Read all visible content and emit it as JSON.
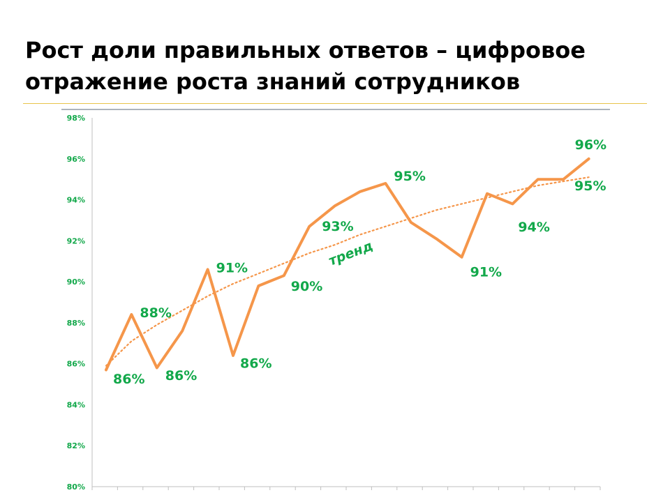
{
  "title": "Рост доли правильных ответов – цифровое отражение роста знаний сотрудников",
  "colors": {
    "series": "#f5964a",
    "labels": "#12a84a",
    "title_rule": "#e8c34a",
    "axis": "#bfbfbf",
    "top_rule": "#5a6a78"
  },
  "chart_data": {
    "type": "line",
    "title": "",
    "xlabel": "",
    "ylabel": "",
    "ylim": [
      80,
      98
    ],
    "yticks": [
      "80%",
      "82%",
      "84%",
      "86%",
      "88%",
      "90%",
      "92%",
      "94%",
      "96%",
      "98%"
    ],
    "x": [
      1,
      2,
      3,
      4,
      5,
      6,
      7,
      8,
      9,
      10,
      11,
      12,
      13,
      14,
      15,
      16,
      17,
      18,
      19,
      20
    ],
    "grid": false,
    "series": [
      {
        "values": [
          85.7,
          88.4,
          85.8,
          87.6,
          90.6,
          86.4,
          89.8,
          90.3,
          92.7,
          93.7,
          94.4,
          94.8,
          92.9,
          92.1,
          91.2,
          94.3,
          93.8,
          95.0,
          95.0,
          96.0
        ],
        "data_labels": [
          {
            "i": 0,
            "text": "86%"
          },
          {
            "i": 1,
            "text": "88%"
          },
          {
            "i": 2,
            "text": "86%"
          },
          {
            "i": 4,
            "text": "91%"
          },
          {
            "i": 5,
            "text": "86%"
          },
          {
            "i": 7,
            "text": "90%"
          },
          {
            "i": 8,
            "text": "93%"
          },
          {
            "i": 11,
            "text": "95%"
          },
          {
            "i": 14,
            "text": "91%"
          },
          {
            "i": 16,
            "text": "94%"
          },
          {
            "i": 19,
            "text": "96%"
          }
        ]
      }
    ],
    "trend": {
      "type": "logarithmic",
      "label": "тренд",
      "values": [
        85.9,
        87.1,
        87.9,
        88.6,
        89.3,
        89.9,
        90.4,
        90.9,
        91.4,
        91.8,
        92.3,
        92.7,
        93.1,
        93.5,
        93.8,
        94.1,
        94.4,
        94.7,
        94.9,
        95.1
      ],
      "end_label": "95%"
    }
  }
}
